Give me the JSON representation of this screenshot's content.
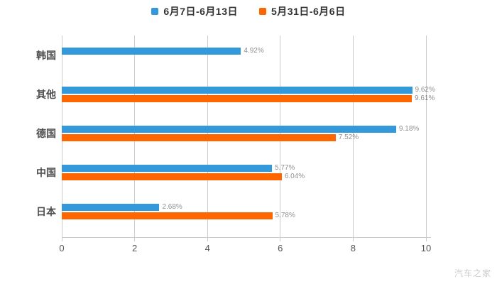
{
  "legend": [
    {
      "label": "6月7日-6月13日",
      "color": "#3399db"
    },
    {
      "label": "5月31日-6月6日",
      "color": "#ff6600"
    }
  ],
  "watermark": "汽车之家",
  "axis": {
    "xticks": [
      "0",
      "2",
      "4",
      "6",
      "8",
      "10"
    ]
  },
  "chart_data": {
    "type": "bar",
    "orientation": "horizontal",
    "title": "",
    "xlabel": "",
    "ylabel": "",
    "categories": [
      "韩国",
      "其他",
      "德国",
      "中国",
      "日本"
    ],
    "series": [
      {
        "name": "6月7日-6月13日",
        "color": "#3399db",
        "values": [
          4.92,
          9.62,
          9.18,
          5.77,
          2.68
        ],
        "labels": [
          "4.92%",
          "9.62%",
          "9.18%",
          "5.77%",
          "2.68%"
        ]
      },
      {
        "name": "5月31日-6月6日",
        "color": "#ff6600",
        "values": [
          null,
          9.61,
          7.52,
          6.04,
          5.78
        ],
        "labels": [
          null,
          "9.61%",
          "7.52%",
          "6.04%",
          "5.78%"
        ]
      }
    ],
    "xlim": [
      0,
      10
    ],
    "xticks": [
      0,
      2,
      4,
      6,
      8,
      10
    ],
    "grid": true,
    "gridline_color": "#cccccc",
    "legend_position": "top",
    "background": "#ffffff"
  }
}
